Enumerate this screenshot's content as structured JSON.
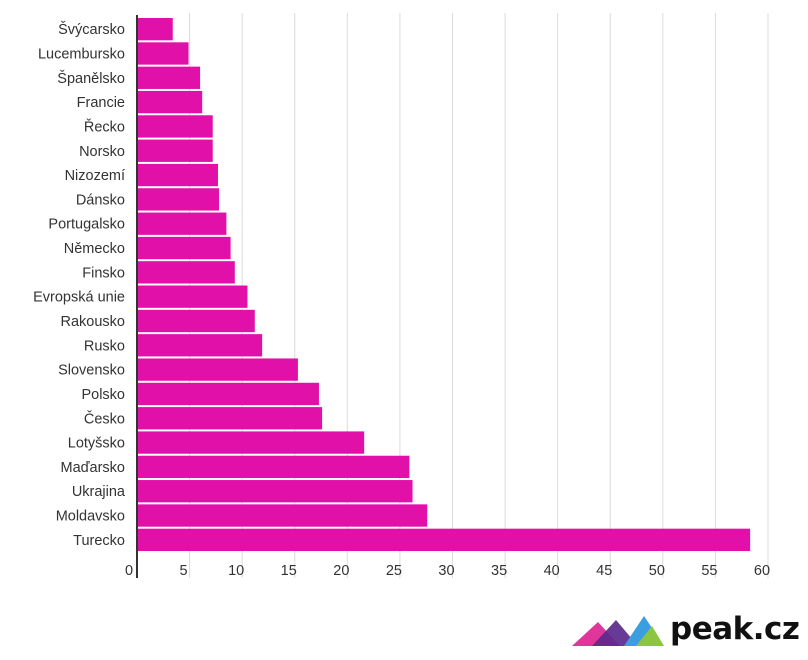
{
  "chart_data": {
    "type": "bar",
    "orientation": "horizontal",
    "title": "",
    "xlabel": "",
    "ylabel": "",
    "categories": [
      "Švýcarsko",
      "Lucembursko",
      "Španělsko",
      "Francie",
      "Řecko",
      "Norsko",
      "Nizozemí",
      "Dánsko",
      "Portugalsko",
      "Německo",
      "Finsko",
      "Evropská unie",
      "Rakousko",
      "Rusko",
      "Slovensko",
      "Polsko",
      "Česko",
      "Lotyšsko",
      "Maďarsko",
      "Ukrajina",
      "Moldavsko",
      "Turecko"
    ],
    "values": [
      3.4,
      4.9,
      6.0,
      6.2,
      7.2,
      7.2,
      7.7,
      7.8,
      8.5,
      8.9,
      9.3,
      10.5,
      11.2,
      11.9,
      15.3,
      17.3,
      17.6,
      21.6,
      25.9,
      26.2,
      27.6,
      58.3
    ],
    "xlim": [
      0,
      60
    ],
    "xticks": [
      0,
      5,
      10,
      15,
      20,
      25,
      30,
      35,
      40,
      45,
      50,
      55,
      60
    ],
    "bar_color": "#e010a8",
    "grid": true
  },
  "brand": {
    "name": "peak.cz",
    "colors": [
      "#e0359a",
      "#5a2a8c",
      "#3a9ee0",
      "#8cc63f"
    ]
  }
}
